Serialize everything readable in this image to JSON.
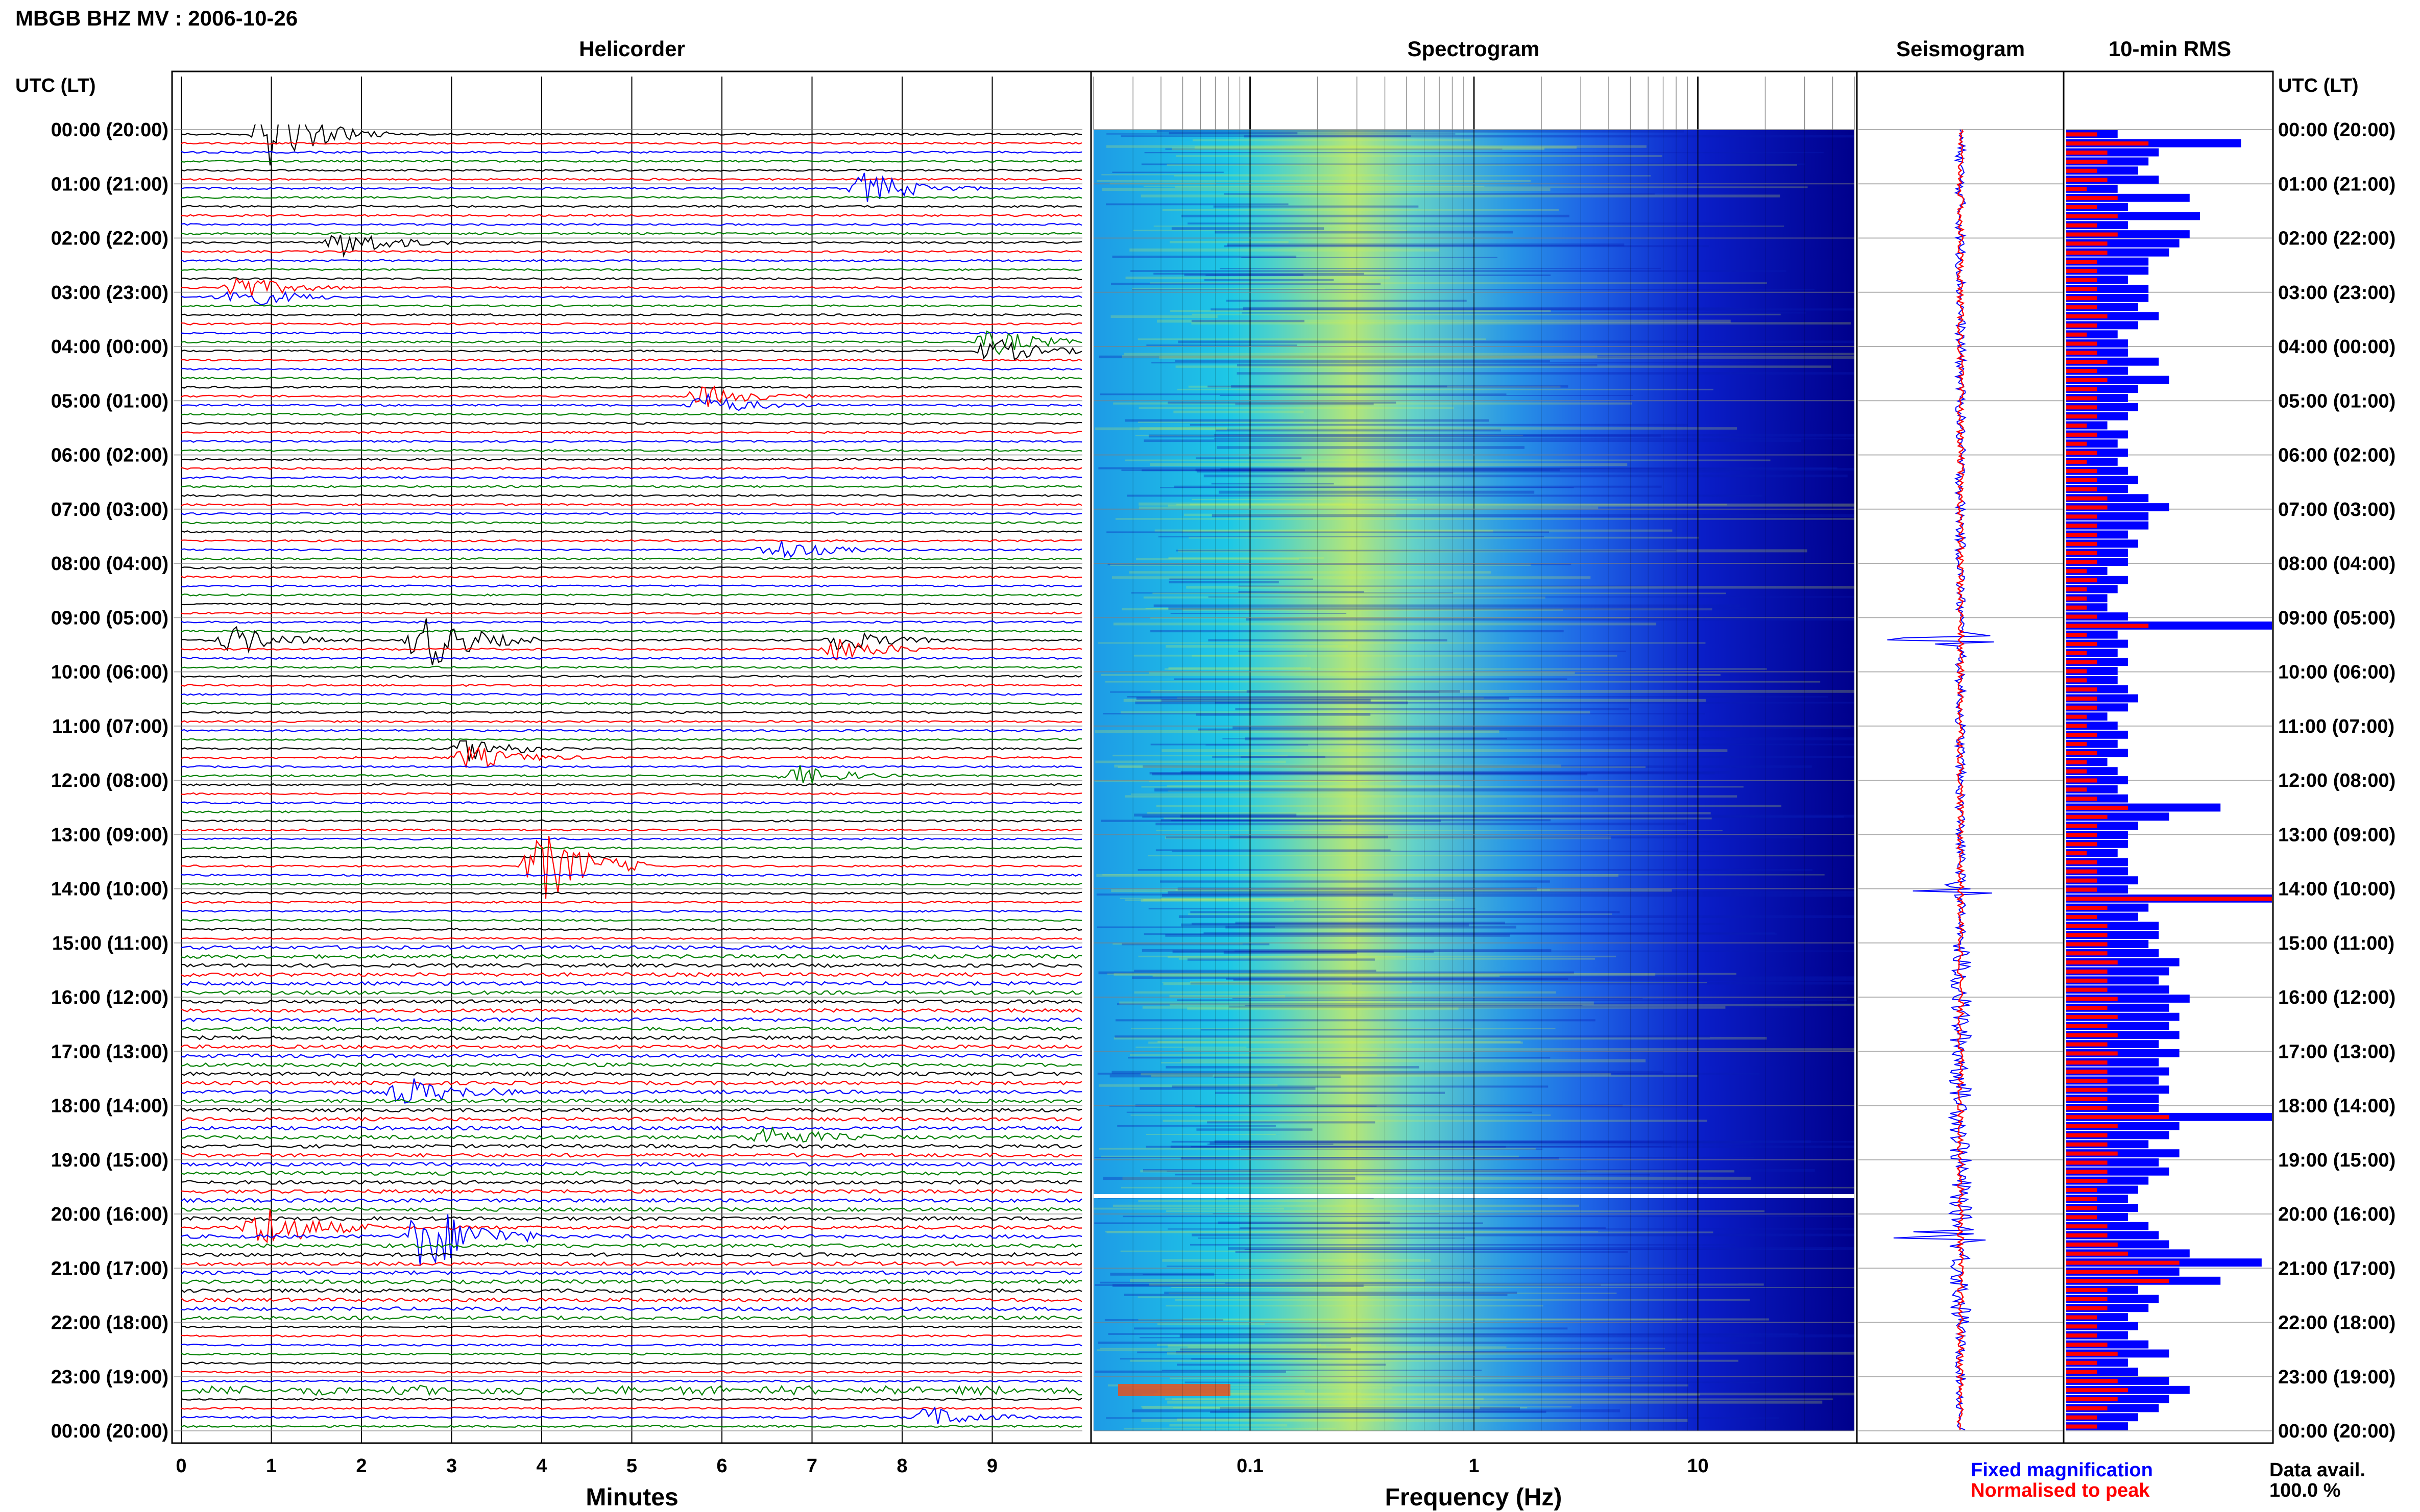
{
  "title": "MBGB BHZ MV : 2006-10-26",
  "panels": {
    "helicorder": "Helicorder",
    "spectrogram": "Spectrogram",
    "seismogram": "Seismogram",
    "rms": "10-min RMS"
  },
  "axis_header_left": "UTC (LT)",
  "axis_header_right": "UTC (LT)",
  "time_labels": [
    "00:00 (20:00)",
    "01:00 (21:00)",
    "02:00 (22:00)",
    "03:00 (23:00)",
    "04:00 (00:00)",
    "05:00 (01:00)",
    "06:00 (02:00)",
    "07:00 (03:00)",
    "08:00 (04:00)",
    "09:00 (05:00)",
    "10:00 (06:00)",
    "11:00 (07:00)",
    "12:00 (08:00)",
    "13:00 (09:00)",
    "14:00 (10:00)",
    "15:00 (11:00)",
    "16:00 (12:00)",
    "17:00 (13:00)",
    "18:00 (14:00)",
    "19:00 (15:00)",
    "20:00 (16:00)",
    "21:00 (17:00)",
    "22:00 (18:00)",
    "23:00 (19:00)",
    "00:00 (20:00)"
  ],
  "x_labels": {
    "minutes": "Minutes",
    "frequency": "Frequency (Hz)"
  },
  "minute_ticks": [
    "0",
    "1",
    "2",
    "3",
    "4",
    "5",
    "6",
    "7",
    "8",
    "9"
  ],
  "freq_ticks": [
    "0.1",
    "1",
    "10"
  ],
  "legend": {
    "fixed": "Fixed magnification",
    "normalised": "Normalised to peak"
  },
  "data_avail": {
    "label": "Data avail.",
    "value": "100.0 %"
  },
  "colors": {
    "trace_cycle": [
      "#000000",
      "#ff0000",
      "#0000ff",
      "#008000"
    ],
    "spectrogram_low": "#00008b",
    "spectrogram_mid": "#1ec8e6",
    "spectrogram_high": "#c8e650",
    "fixed": "#0000ff",
    "normalised": "#ff0000"
  },
  "chart_data": [
    {
      "type": "line",
      "title": "Helicorder",
      "xlabel": "Minutes",
      "xlim": [
        0,
        10
      ],
      "ylim_hours": [
        0,
        24
      ],
      "rows_per_hour": 6,
      "events": [
        {
          "hour": 0.1,
          "minute": 1.0,
          "amp": 3.0
        },
        {
          "hour": 1.05,
          "minute": 7.6,
          "amp": 1.5
        },
        {
          "hour": 2.15,
          "minute": 1.8,
          "amp": 1.3
        },
        {
          "hour": 3.0,
          "minute": 0.6,
          "amp": 1.2
        },
        {
          "hour": 4.0,
          "minute": 9.0,
          "amp": 1.2
        },
        {
          "hour": 5.0,
          "minute": 5.8,
          "amp": 1.0
        },
        {
          "hour": 7.7,
          "minute": 6.6,
          "amp": 1.0
        },
        {
          "hour": 9.35,
          "minute": 2.7,
          "amp": 2.8
        },
        {
          "hour": 9.4,
          "minute": 0.6,
          "amp": 1.3
        },
        {
          "hour": 9.5,
          "minute": 7.3,
          "amp": 1.1
        },
        {
          "hour": 11.5,
          "minute": 3.2,
          "amp": 1.1
        },
        {
          "hour": 11.95,
          "minute": 6.8,
          "amp": 1.0
        },
        {
          "hour": 13.6,
          "minute": 4.0,
          "amp": 3.5
        },
        {
          "hour": 17.7,
          "minute": 2.5,
          "amp": 1.3
        },
        {
          "hour": 18.6,
          "minute": 6.5,
          "amp": 1.0
        },
        {
          "hour": 20.3,
          "minute": 0.9,
          "amp": 2.2
        },
        {
          "hour": 20.35,
          "minute": 2.7,
          "amp": 3.5
        },
        {
          "hour": 23.8,
          "minute": 8.3,
          "amp": 1.0
        }
      ]
    },
    {
      "type": "heatmap",
      "title": "Spectrogram",
      "xlabel": "Frequency (Hz)",
      "x_scale": "log",
      "xlim": [
        0.02,
        50
      ],
      "ylim_hours": [
        0,
        24
      ],
      "gap_hour": 19.6
    },
    {
      "type": "line",
      "title": "Seismogram",
      "ylim_hours": [
        0,
        24
      ],
      "spikes_hours": [
        9.4,
        14.0,
        20.4
      ]
    },
    {
      "type": "bar",
      "title": "10-min RMS",
      "orientation": "horizontal",
      "xlim": [
        0,
        1
      ],
      "series": [
        {
          "name": "Fixed magnification",
          "values": [
            0.25,
            0.85,
            0.45,
            0.4,
            0.35,
            0.45,
            0.25,
            0.6,
            0.3,
            0.65,
            0.3,
            0.6,
            0.55,
            0.5,
            0.4,
            0.4,
            0.3,
            0.4,
            0.4,
            0.35,
            0.45,
            0.35,
            0.25,
            0.3,
            0.3,
            0.45,
            0.3,
            0.5,
            0.35,
            0.3,
            0.35,
            0.3,
            0.2,
            0.3,
            0.25,
            0.3,
            0.25,
            0.3,
            0.35,
            0.3,
            0.4,
            0.5,
            0.4,
            0.4,
            0.3,
            0.35,
            0.3,
            0.3,
            0.2,
            0.3,
            0.25,
            0.2,
            0.2,
            0.3,
            1.0,
            0.25,
            0.3,
            0.25,
            0.3,
            0.25,
            0.25,
            0.3,
            0.35,
            0.3,
            0.2,
            0.25,
            0.3,
            0.25,
            0.3,
            0.2,
            0.25,
            0.3,
            0.25,
            0.3,
            0.75,
            0.5,
            0.35,
            0.3,
            0.3,
            0.25,
            0.3,
            0.3,
            0.35,
            0.3,
            1.0,
            0.4,
            0.35,
            0.45,
            0.45,
            0.4,
            0.45,
            0.55,
            0.5,
            0.45,
            0.5,
            0.6,
            0.5,
            0.55,
            0.5,
            0.55,
            0.45,
            0.55,
            0.45,
            0.5,
            0.45,
            0.5,
            0.45,
            0.45,
            1.0,
            0.55,
            0.5,
            0.4,
            0.55,
            0.45,
            0.5,
            0.4,
            0.35,
            0.3,
            0.35,
            0.3,
            0.4,
            0.45,
            0.5,
            0.6,
            0.95,
            0.55,
            0.75,
            0.35,
            0.45,
            0.4,
            0.3,
            0.35,
            0.3,
            0.4,
            0.5,
            0.3,
            0.35,
            0.5,
            0.6,
            0.5,
            0.45,
            0.35,
            0.3
          ]
        },
        {
          "name": "Normalised to peak",
          "values": [
            0.15,
            0.4,
            0.2,
            0.2,
            0.15,
            0.2,
            0.1,
            0.25,
            0.15,
            0.25,
            0.15,
            0.25,
            0.2,
            0.2,
            0.15,
            0.15,
            0.15,
            0.15,
            0.15,
            0.15,
            0.2,
            0.15,
            0.1,
            0.15,
            0.15,
            0.2,
            0.15,
            0.2,
            0.15,
            0.15,
            0.15,
            0.15,
            0.1,
            0.15,
            0.1,
            0.15,
            0.1,
            0.15,
            0.15,
            0.15,
            0.2,
            0.2,
            0.15,
            0.15,
            0.15,
            0.15,
            0.15,
            0.15,
            0.1,
            0.15,
            0.1,
            0.1,
            0.1,
            0.15,
            0.4,
            0.1,
            0.15,
            0.1,
            0.15,
            0.1,
            0.1,
            0.15,
            0.15,
            0.15,
            0.1,
            0.1,
            0.15,
            0.1,
            0.15,
            0.1,
            0.1,
            0.15,
            0.1,
            0.15,
            0.3,
            0.2,
            0.15,
            0.15,
            0.15,
            0.1,
            0.15,
            0.15,
            0.15,
            0.15,
            1.0,
            0.2,
            0.15,
            0.2,
            0.2,
            0.2,
            0.2,
            0.25,
            0.2,
            0.2,
            0.2,
            0.25,
            0.2,
            0.25,
            0.2,
            0.25,
            0.2,
            0.25,
            0.2,
            0.2,
            0.2,
            0.2,
            0.2,
            0.2,
            0.5,
            0.25,
            0.2,
            0.2,
            0.25,
            0.2,
            0.2,
            0.2,
            0.15,
            0.15,
            0.15,
            0.15,
            0.2,
            0.2,
            0.25,
            0.3,
            0.55,
            0.35,
            0.5,
            0.2,
            0.2,
            0.2,
            0.15,
            0.15,
            0.15,
            0.2,
            0.25,
            0.15,
            0.15,
            0.25,
            0.3,
            0.25,
            0.2,
            0.15,
            0.15
          ]
        }
      ]
    }
  ]
}
